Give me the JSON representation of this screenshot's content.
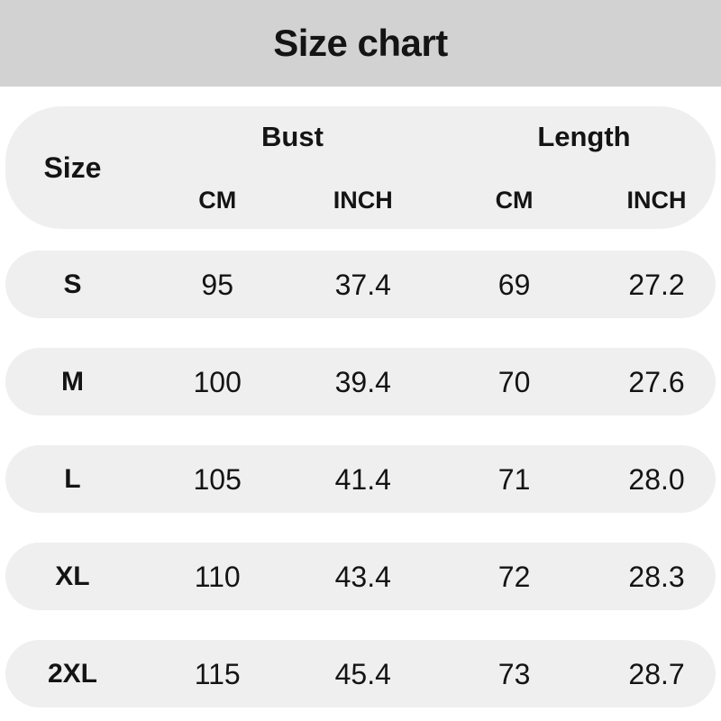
{
  "title": "Size chart",
  "table": {
    "size_header": "Size",
    "groups": [
      {
        "label": "Bust",
        "subcolumns": [
          "CM",
          "INCH"
        ]
      },
      {
        "label": "Length",
        "subcolumns": [
          "CM",
          "INCH"
        ]
      }
    ],
    "rows": [
      {
        "size": "S",
        "bust_cm": "95",
        "bust_inch": "37.4",
        "length_cm": "69",
        "length_inch": "27.2"
      },
      {
        "size": "M",
        "bust_cm": "100",
        "bust_inch": "39.4",
        "length_cm": "70",
        "length_inch": "27.6"
      },
      {
        "size": "L",
        "bust_cm": "105",
        "bust_inch": "41.4",
        "length_cm": "71",
        "length_inch": "28.0"
      },
      {
        "size": "XL",
        "bust_cm": "110",
        "bust_inch": "43.4",
        "length_cm": "72",
        "length_inch": "28.3"
      },
      {
        "size": "2XL",
        "bust_cm": "115",
        "bust_inch": "45.4",
        "length_cm": "73",
        "length_inch": "28.7"
      }
    ]
  },
  "chart_data": {
    "type": "table",
    "title": "Size chart",
    "columns": [
      "Size",
      "Bust CM",
      "Bust INCH",
      "Length CM",
      "Length INCH"
    ],
    "column_groups": [
      {
        "label": "Bust",
        "children": [
          "CM",
          "INCH"
        ]
      },
      {
        "label": "Length",
        "children": [
          "CM",
          "INCH"
        ]
      }
    ],
    "rows": [
      [
        "S",
        95,
        37.4,
        69,
        27.2
      ],
      [
        "M",
        100,
        39.4,
        70,
        27.6
      ],
      [
        "L",
        105,
        41.4,
        71,
        28.0
      ],
      [
        "XL",
        110,
        43.4,
        72,
        28.3
      ],
      [
        "2XL",
        115,
        45.4,
        73,
        28.7
      ]
    ]
  },
  "colors": {
    "header_band": "#d2d2d2",
    "pill": "#efefef",
    "text": "#141414",
    "background": "#ffffff"
  }
}
